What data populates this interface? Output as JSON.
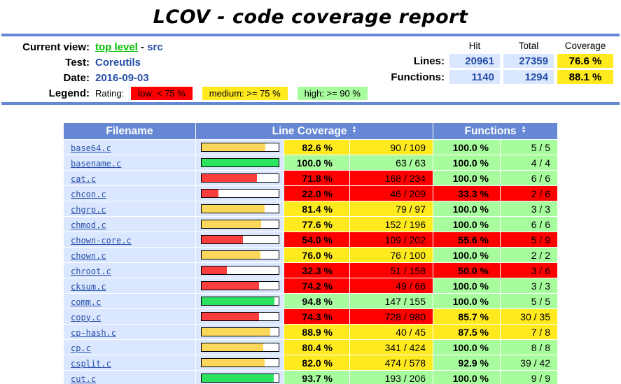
{
  "title": "LCOV - code coverage report",
  "header": {
    "labels": {
      "current_view": "Current view:",
      "test": "Test:",
      "date": "Date:",
      "legend": "Legend:"
    },
    "current_view": {
      "link": "top level",
      "separator": "-",
      "current": "src"
    },
    "test_value": "Coreutils",
    "date_value": "2016-09-03",
    "legend": {
      "rating_label": "Rating:",
      "items": [
        {
          "label": "low: < 75 %",
          "rating": "low",
          "color": "#FF0000"
        },
        {
          "label": "medium: >= 75 %",
          "rating": "med",
          "color": "#FFEA20"
        },
        {
          "label": "high: >= 90 %",
          "rating": "hi",
          "color": "#A7FC9D"
        }
      ]
    },
    "summary": {
      "col_headers": {
        "hit": "Hit",
        "total": "Total",
        "coverage": "Coverage"
      },
      "lines": {
        "label": "Lines:",
        "hit": "20961",
        "total": "27359",
        "coverage": "76.6 %"
      },
      "functions": {
        "label": "Functions:",
        "hit": "1140",
        "total": "1294",
        "coverage": "88.1 %"
      }
    }
  },
  "icons": {
    "sort_up": "▲",
    "sort_down": "▼"
  },
  "colors": {
    "rule_blue": "#6688D4",
    "table_head_blue": "#6688D4",
    "cell_blue": "#DAE7FE",
    "value_blue": "#284FA8",
    "link_green": "#00C000",
    "low": "#FF0000",
    "medium": "#FFEA20",
    "high": "#A7FC9D",
    "bar_low": "#FB3D3D",
    "bar_medium": "#FBD75B",
    "bar_high": "#2BE35F"
  },
  "table": {
    "headers": {
      "filename": "Filename",
      "line_coverage": "Line Coverage",
      "functions": "Functions"
    },
    "rows": [
      {
        "file": "base64.c",
        "line_pct": "82.6 %",
        "line_pct_num": 82.6,
        "line_ratio": "90 / 109",
        "line_rating": "med",
        "func_pct": "100.0 %",
        "func_ratio": "5 / 5",
        "func_rating": "hi"
      },
      {
        "file": "basename.c",
        "line_pct": "100.0 %",
        "line_pct_num": 100,
        "line_ratio": "63 / 63",
        "line_rating": "hi",
        "func_pct": "100.0 %",
        "func_ratio": "4 / 4",
        "func_rating": "hi"
      },
      {
        "file": "cat.c",
        "line_pct": "71.8 %",
        "line_pct_num": 71.8,
        "line_ratio": "168 / 234",
        "line_rating": "low",
        "func_pct": "100.0 %",
        "func_ratio": "6 / 6",
        "func_rating": "hi"
      },
      {
        "file": "chcon.c",
        "line_pct": "22.0 %",
        "line_pct_num": 22.0,
        "line_ratio": "46 / 209",
        "line_rating": "low",
        "func_pct": "33.3 %",
        "func_ratio": "2 / 6",
        "func_rating": "low"
      },
      {
        "file": "chgrp.c",
        "line_pct": "81.4 %",
        "line_pct_num": 81.4,
        "line_ratio": "79 / 97",
        "line_rating": "med",
        "func_pct": "100.0 %",
        "func_ratio": "3 / 3",
        "func_rating": "hi"
      },
      {
        "file": "chmod.c",
        "line_pct": "77.6 %",
        "line_pct_num": 77.6,
        "line_ratio": "152 / 196",
        "line_rating": "med",
        "func_pct": "100.0 %",
        "func_ratio": "6 / 6",
        "func_rating": "hi"
      },
      {
        "file": "chown-core.c",
        "line_pct": "54.0 %",
        "line_pct_num": 54.0,
        "line_ratio": "109 / 202",
        "line_rating": "low",
        "func_pct": "55.6 %",
        "func_ratio": "5 / 9",
        "func_rating": "low"
      },
      {
        "file": "chown.c",
        "line_pct": "76.0 %",
        "line_pct_num": 76.0,
        "line_ratio": "76 / 100",
        "line_rating": "med",
        "func_pct": "100.0 %",
        "func_ratio": "2 / 2",
        "func_rating": "hi"
      },
      {
        "file": "chroot.c",
        "line_pct": "32.3 %",
        "line_pct_num": 32.3,
        "line_ratio": "51 / 158",
        "line_rating": "low",
        "func_pct": "50.0 %",
        "func_ratio": "3 / 6",
        "func_rating": "low"
      },
      {
        "file": "cksum.c",
        "line_pct": "74.2 %",
        "line_pct_num": 74.2,
        "line_ratio": "49 / 66",
        "line_rating": "low",
        "func_pct": "100.0 %",
        "func_ratio": "3 / 3",
        "func_rating": "hi"
      },
      {
        "file": "comm.c",
        "line_pct": "94.8 %",
        "line_pct_num": 94.8,
        "line_ratio": "147 / 155",
        "line_rating": "hi",
        "func_pct": "100.0 %",
        "func_ratio": "5 / 5",
        "func_rating": "hi"
      },
      {
        "file": "copy.c",
        "line_pct": "74.3 %",
        "line_pct_num": 74.3,
        "line_ratio": "728 / 980",
        "line_rating": "low",
        "func_pct": "85.7 %",
        "func_ratio": "30 / 35",
        "func_rating": "med"
      },
      {
        "file": "cp-hash.c",
        "line_pct": "88.9 %",
        "line_pct_num": 88.9,
        "line_ratio": "40 / 45",
        "line_rating": "med",
        "func_pct": "87.5 %",
        "func_ratio": "7 / 8",
        "func_rating": "med"
      },
      {
        "file": "cp.c",
        "line_pct": "80.4 %",
        "line_pct_num": 80.4,
        "line_ratio": "341 / 424",
        "line_rating": "med",
        "func_pct": "100.0 %",
        "func_ratio": "8 / 8",
        "func_rating": "hi"
      },
      {
        "file": "csplit.c",
        "line_pct": "82.0 %",
        "line_pct_num": 82.0,
        "line_ratio": "474 / 578",
        "line_rating": "med",
        "func_pct": "92.9 %",
        "func_ratio": "39 / 42",
        "func_rating": "hi"
      },
      {
        "file": "cut.c",
        "line_pct": "93.7 %",
        "line_pct_num": 93.7,
        "line_ratio": "193 / 206",
        "line_rating": "hi",
        "func_pct": "100.0 %",
        "func_ratio": "9 / 9",
        "func_rating": "hi"
      }
    ]
  }
}
